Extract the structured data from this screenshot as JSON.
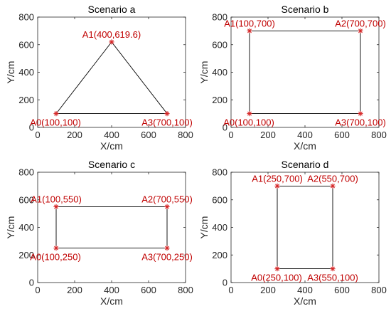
{
  "chart_data": [
    {
      "type": "scatter",
      "title": "Scenario a",
      "xlabel": "X/cm",
      "ylabel": "Y/cm",
      "xlim": [
        0,
        800
      ],
      "ylim": [
        0,
        800
      ],
      "xticks": [
        0,
        200,
        400,
        600,
        800
      ],
      "yticks": [
        0,
        200,
        400,
        600,
        800
      ],
      "grid": false,
      "points": [
        {
          "label": "A0(100,100)",
          "x": 100,
          "y": 100,
          "anchor": "A0"
        },
        {
          "label": "A1(400,619.6)",
          "x": 400,
          "y": 619.6,
          "anchor": "A1"
        },
        {
          "label": "A3(700,100)",
          "x": 700,
          "y": 100,
          "anchor": "A3"
        }
      ],
      "outline": [
        [
          100,
          100
        ],
        [
          400,
          619.6
        ],
        [
          700,
          100
        ],
        [
          100,
          100
        ]
      ]
    },
    {
      "type": "scatter",
      "title": "Scenario b",
      "xlabel": "X/cm",
      "ylabel": "Y/cm",
      "xlim": [
        0,
        800
      ],
      "ylim": [
        0,
        800
      ],
      "xticks": [
        0,
        200,
        400,
        600,
        800
      ],
      "yticks": [
        0,
        200,
        400,
        600,
        800
      ],
      "grid": false,
      "points": [
        {
          "label": "A0(100,100)",
          "x": 100,
          "y": 100,
          "anchor": "A0"
        },
        {
          "label": "A1(100,700)",
          "x": 100,
          "y": 700,
          "anchor": "A1"
        },
        {
          "label": "A2(700,700)",
          "x": 700,
          "y": 700,
          "anchor": "A2"
        },
        {
          "label": "A3(700,100)",
          "x": 700,
          "y": 100,
          "anchor": "A3"
        }
      ],
      "outline": [
        [
          100,
          100
        ],
        [
          100,
          700
        ],
        [
          700,
          700
        ],
        [
          700,
          100
        ],
        [
          100,
          100
        ]
      ]
    },
    {
      "type": "scatter",
      "title": "Scenario c",
      "xlabel": "X/cm",
      "ylabel": "Y/cm",
      "xlim": [
        0,
        800
      ],
      "ylim": [
        0,
        800
      ],
      "xticks": [
        0,
        200,
        400,
        600,
        800
      ],
      "yticks": [
        0,
        200,
        400,
        600,
        800
      ],
      "grid": false,
      "points": [
        {
          "label": "A0(100,250)",
          "x": 100,
          "y": 250,
          "anchor": "A0"
        },
        {
          "label": "A1(100,550)",
          "x": 100,
          "y": 550,
          "anchor": "A1"
        },
        {
          "label": "A2(700,550)",
          "x": 700,
          "y": 550,
          "anchor": "A2"
        },
        {
          "label": "A3(700,250)",
          "x": 700,
          "y": 250,
          "anchor": "A3"
        }
      ],
      "outline": [
        [
          100,
          250
        ],
        [
          100,
          550
        ],
        [
          700,
          550
        ],
        [
          700,
          250
        ],
        [
          100,
          250
        ]
      ]
    },
    {
      "type": "scatter",
      "title": "Scenario d",
      "xlabel": "X/cm",
      "ylabel": "Y/cm",
      "xlim": [
        0,
        800
      ],
      "ylim": [
        0,
        800
      ],
      "xticks": [
        0,
        200,
        400,
        600,
        800
      ],
      "yticks": [
        0,
        200,
        400,
        600,
        800
      ],
      "grid": false,
      "points": [
        {
          "label": "A0(250,100)",
          "x": 250,
          "y": 100,
          "anchor": "A0"
        },
        {
          "label": "A1(250,700)",
          "x": 250,
          "y": 700,
          "anchor": "A1"
        },
        {
          "label": "A2(550,700)",
          "x": 550,
          "y": 700,
          "anchor": "A2"
        },
        {
          "label": "A3(550,100)",
          "x": 550,
          "y": 100,
          "anchor": "A3"
        }
      ],
      "outline": [
        [
          250,
          100
        ],
        [
          250,
          700
        ],
        [
          550,
          700
        ],
        [
          550,
          100
        ],
        [
          250,
          100
        ]
      ]
    }
  ],
  "colors": {
    "marker": "#d62728",
    "label": "#c00000",
    "outline": "#000000",
    "axis": "#262626"
  }
}
